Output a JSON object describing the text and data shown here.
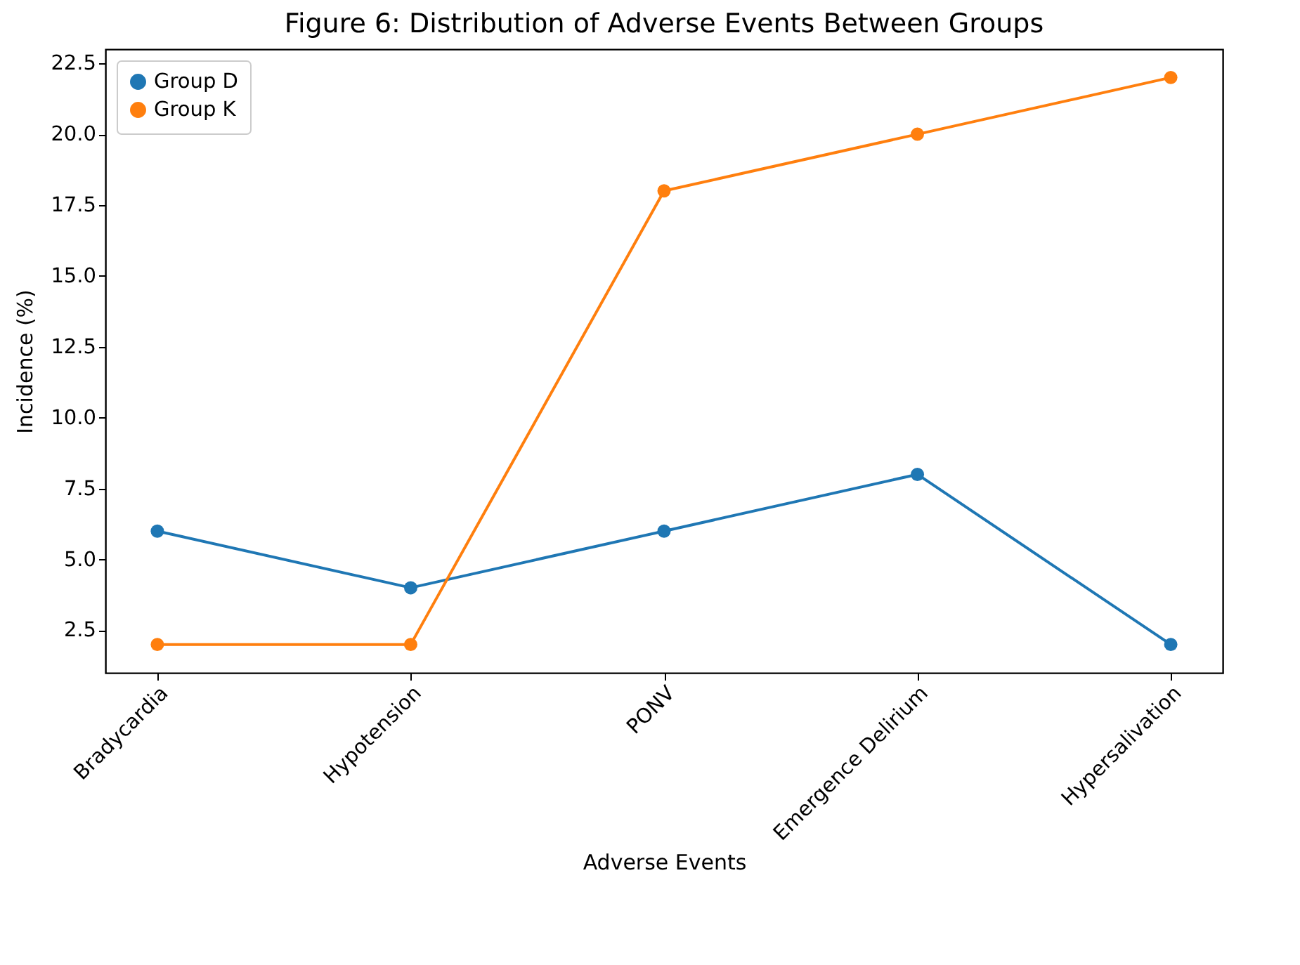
{
  "chart_data": {
    "type": "line",
    "title": "Figure 6: Distribution of Adverse Events Between Groups",
    "xlabel": "Adverse Events",
    "ylabel": "Incidence (%)",
    "categories": [
      "Bradycardia",
      "Hypotension",
      "PONV",
      "Emergence Delirium",
      "Hypersalivation"
    ],
    "series": [
      {
        "name": "Group D",
        "color": "#1f77b4",
        "values": [
          6,
          4,
          6,
          8,
          2
        ]
      },
      {
        "name": "Group K",
        "color": "#ff7f0e",
        "values": [
          2,
          2,
          18,
          20,
          22
        ]
      }
    ],
    "ylim": [
      1,
      23
    ],
    "yticks": [
      {
        "value": 2.5,
        "label": "2.5"
      },
      {
        "value": 5,
        "label": "5.0"
      },
      {
        "value": 7.5,
        "label": "7.5"
      },
      {
        "value": 10,
        "label": "10.0"
      },
      {
        "value": 12.5,
        "label": "12.5"
      },
      {
        "value": 15,
        "label": "15.0"
      },
      {
        "value": 17.5,
        "label": "17.5"
      },
      {
        "value": 20,
        "label": "20.0"
      },
      {
        "value": 22.5,
        "label": "22.5"
      }
    ],
    "grid": false,
    "legend": "top left",
    "marker": "circle",
    "line_style": "solid"
  }
}
